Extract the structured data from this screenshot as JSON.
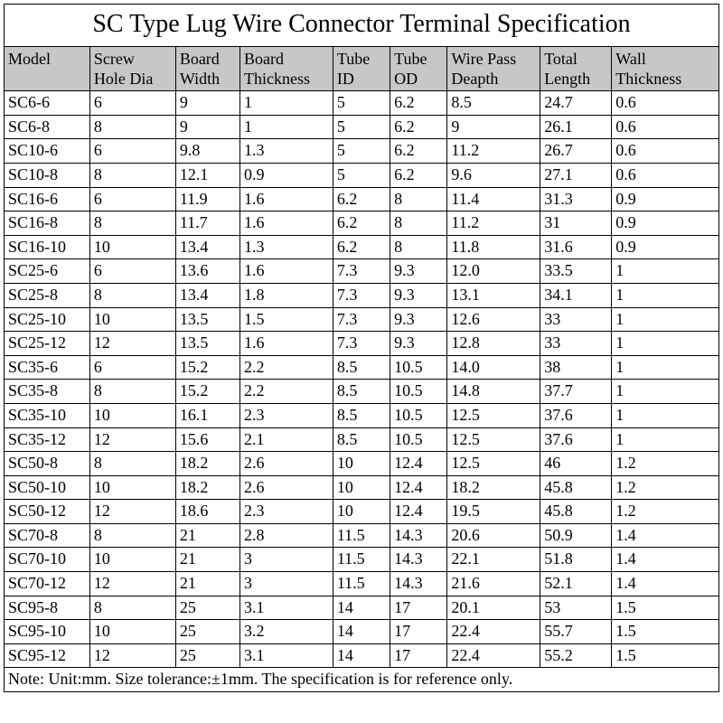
{
  "title": "SC Type Lug Wire Connector Terminal Specification",
  "columns": [
    {
      "line1": "Model",
      "line2": ""
    },
    {
      "line1": "Screw",
      "line2": "Hole Dia"
    },
    {
      "line1": "Board",
      "line2": "Width"
    },
    {
      "line1": "Board",
      "line2": "Thickness"
    },
    {
      "line1": "Tube",
      "line2": "ID"
    },
    {
      "line1": "Tube",
      "line2": "OD"
    },
    {
      "line1": "Wire Pass",
      "line2": "Deapth"
    },
    {
      "line1": "Total",
      "line2": "Length"
    },
    {
      "line1": "Wall",
      "line2": "Thickness"
    }
  ],
  "rows": [
    [
      "SC6-6",
      "6",
      "9",
      "1",
      "5",
      "6.2",
      "8.5",
      "24.7",
      "0.6"
    ],
    [
      "SC6-8",
      "8",
      "9",
      "1",
      "5",
      "6.2",
      "9",
      "26.1",
      "0.6"
    ],
    [
      "SC10-6",
      "6",
      "9.8",
      "1.3",
      "5",
      "6.2",
      "11.2",
      "26.7",
      "0.6"
    ],
    [
      "SC10-8",
      "8",
      "12.1",
      "0.9",
      "5",
      "6.2",
      "9.6",
      "27.1",
      "0.6"
    ],
    [
      "SC16-6",
      "6",
      "11.9",
      "1.6",
      "6.2",
      "8",
      "11.4",
      "31.3",
      "0.9"
    ],
    [
      "SC16-8",
      "8",
      "11.7",
      "1.6",
      "6.2",
      "8",
      "11.2",
      "31",
      "0.9"
    ],
    [
      "SC16-10",
      "10",
      "13.4",
      "1.3",
      "6.2",
      "8",
      "11.8",
      "31.6",
      "0.9"
    ],
    [
      "SC25-6",
      "6",
      "13.6",
      "1.6",
      "7.3",
      "9.3",
      "12.0",
      "33.5",
      "1"
    ],
    [
      "SC25-8",
      "8",
      "13.4",
      "1.8",
      "7.3",
      "9.3",
      "13.1",
      "34.1",
      "1"
    ],
    [
      "SC25-10",
      "10",
      "13.5",
      "1.5",
      "7.3",
      "9.3",
      "12.6",
      "33",
      "1"
    ],
    [
      "SC25-12",
      "12",
      "13.5",
      "1.6",
      "7.3",
      "9.3",
      "12.8",
      "33",
      "1"
    ],
    [
      "SC35-6",
      "6",
      "15.2",
      "2.2",
      "8.5",
      "10.5",
      "14.0",
      "38",
      "1"
    ],
    [
      "SC35-8",
      "8",
      "15.2",
      "2.2",
      "8.5",
      "10.5",
      "14.8",
      "37.7",
      "1"
    ],
    [
      "SC35-10",
      "10",
      "16.1",
      "2.3",
      "8.5",
      "10.5",
      "12.5",
      "37.6",
      "1"
    ],
    [
      "SC35-12",
      "12",
      "15.6",
      "2.1",
      "8.5",
      "10.5",
      "12.5",
      "37.6",
      "1"
    ],
    [
      "SC50-8",
      "8",
      "18.2",
      "2.6",
      "10",
      "12.4",
      "12.5",
      "46",
      "1.2"
    ],
    [
      "SC50-10",
      "10",
      "18.2",
      "2.6",
      "10",
      "12.4",
      "18.2",
      "45.8",
      "1.2"
    ],
    [
      "SC50-12",
      "12",
      "18.6",
      "2.3",
      "10",
      "12.4",
      "19.5",
      "45.8",
      "1.2"
    ],
    [
      "SC70-8",
      "8",
      "21",
      "2.8",
      "11.5",
      "14.3",
      "20.6",
      "50.9",
      "1.4"
    ],
    [
      "SC70-10",
      "10",
      "21",
      "3",
      "11.5",
      "14.3",
      "22.1",
      "51.8",
      "1.4"
    ],
    [
      "SC70-12",
      "12",
      "21",
      "3",
      "11.5",
      "14.3",
      "21.6",
      "52.1",
      "1.4"
    ],
    [
      "SC95-8",
      "8",
      "25",
      "3.1",
      "14",
      "17",
      "20.1",
      "53",
      "1.5"
    ],
    [
      "SC95-10",
      "10",
      "25",
      "3.2",
      "14",
      "17",
      "22.4",
      "55.7",
      "1.5"
    ],
    [
      "SC95-12",
      "12",
      "25",
      "3.1",
      "14",
      "17",
      "22.4",
      "55.2",
      "1.5"
    ]
  ],
  "note": "Note: Unit:mm. Size tolerance:±1mm. The specification is for reference only.",
  "style": {
    "header_bg": "#c7c7c7",
    "border_color": "#000000",
    "font_family": "Times New Roman",
    "title_fontsize": 28,
    "cell_fontsize": 18,
    "col_widths_pct": [
      12,
      12,
      9,
      13,
      8,
      8,
      13,
      10,
      15
    ]
  }
}
